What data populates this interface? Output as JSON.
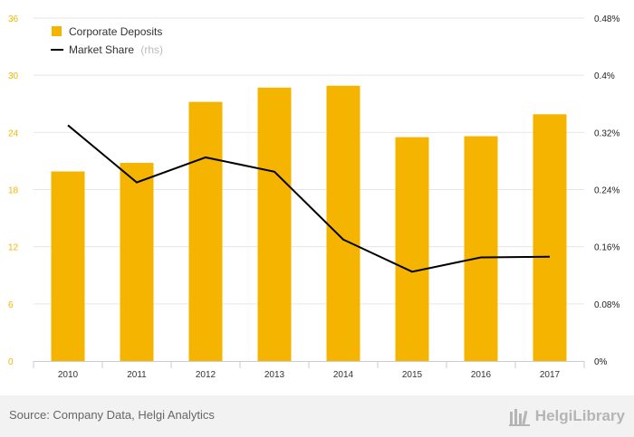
{
  "chart_data": {
    "type": "bar",
    "categories": [
      "2010",
      "2011",
      "2012",
      "2013",
      "2014",
      "2015",
      "2016",
      "2017"
    ],
    "series": [
      {
        "name": "Corporate Deposits",
        "type": "bar",
        "axis": "left",
        "color": "#f5b400",
        "values": [
          19.9,
          20.8,
          27.2,
          28.7,
          28.9,
          23.5,
          23.6,
          25.9
        ]
      },
      {
        "name": "Market Share",
        "name_suffix": "(rhs)",
        "type": "line",
        "axis": "right",
        "color": "#000000",
        "values": [
          0.33,
          0.25,
          0.285,
          0.265,
          0.17,
          0.125,
          0.145,
          0.146
        ]
      }
    ],
    "y_left": {
      "lim": [
        0,
        36
      ],
      "ticks": [
        0,
        6,
        12,
        18,
        24,
        30,
        36
      ],
      "tick_labels": [
        "0",
        "6",
        "12",
        "18",
        "24",
        "30",
        "36"
      ]
    },
    "y_right": {
      "lim": [
        0,
        0.48
      ],
      "ticks": [
        0,
        0.08,
        0.16,
        0.24,
        0.32,
        0.4,
        0.48
      ],
      "tick_labels": [
        "0%",
        "0.08%",
        "0.16%",
        "0.24%",
        "0.32%",
        "0.4%",
        "0.48%"
      ]
    },
    "legend_position": "top-left",
    "grid": "horizontal"
  },
  "footer": {
    "source": "Source: Company Data, Helgi Analytics",
    "brand": "HelgiLibrary"
  },
  "colors": {
    "bar": "#f5b400",
    "line": "#000000",
    "grid": "#e6e6e6",
    "footer_bg": "#f2f2f2"
  }
}
